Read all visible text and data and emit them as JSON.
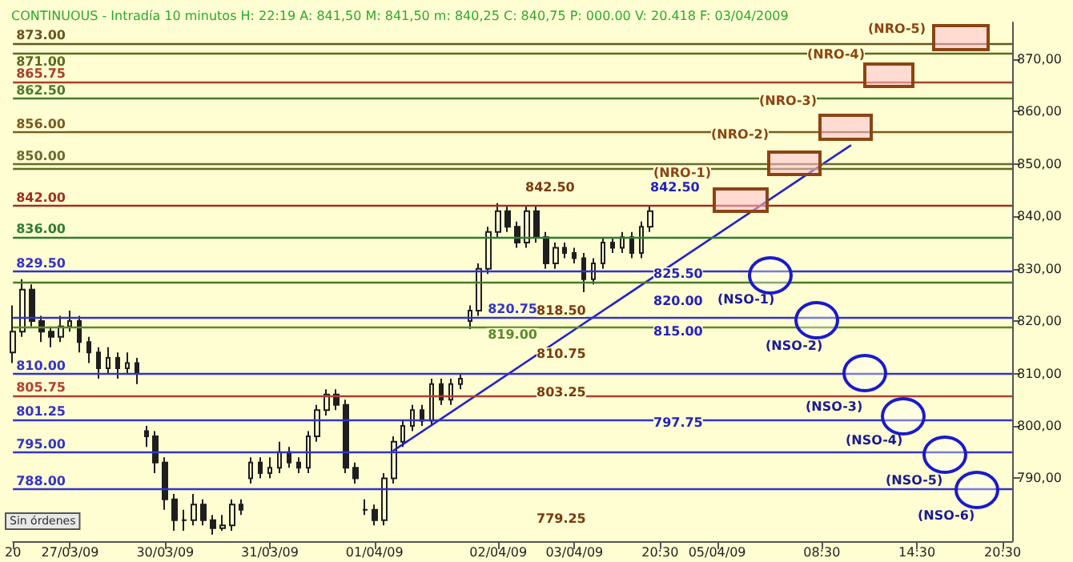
{
  "chart_data": {
    "type": "candlestick",
    "title": "CONTINUOUS - Intradía 10 minutos H: 22:19 A: 841,50 M: 841,50 m: 840,25 C: 840,75 P: 000.00 V: 20.418 F: 03/04/2009",
    "color": "#1e1e1e",
    "categories": [
      "20",
      null,
      null,
      null,
      null,
      null,
      "27/03/09",
      null,
      null,
      null,
      null,
      null,
      null,
      null,
      null,
      null,
      "30/03/09",
      null,
      null,
      null,
      null,
      null,
      null,
      null,
      null,
      null,
      null,
      "31/03/09",
      null,
      null,
      null,
      null,
      null,
      null,
      null,
      null,
      null,
      null,
      "01/04/09",
      null,
      null,
      null,
      null,
      null,
      null,
      null,
      null,
      null,
      null,
      null,
      null,
      "02/04/09",
      null,
      null,
      null,
      null,
      null,
      null,
      null,
      "03/04/09",
      null,
      null,
      null,
      null,
      null,
      null,
      null,
      null,
      "20:30",
      null,
      null,
      null,
      null,
      null,
      "05/04/09",
      null,
      null,
      null,
      null,
      null,
      null,
      null,
      null,
      null,
      null,
      "08:30",
      null,
      null,
      null,
      null,
      null,
      null,
      null,
      null,
      null,
      "14:30",
      null,
      null,
      null,
      null,
      null,
      null,
      null,
      null,
      "20:30",
      null
    ],
    "ohlc": [
      [
        814,
        823,
        812,
        818
      ],
      [
        818,
        828,
        817,
        826
      ],
      [
        826,
        827,
        819,
        820
      ],
      [
        820,
        821,
        816,
        818
      ],
      [
        818,
        819,
        815,
        817
      ],
      [
        817,
        821,
        816,
        819
      ],
      [
        819,
        822,
        818,
        820
      ],
      [
        820,
        821,
        814,
        816
      ],
      [
        816,
        817,
        812,
        814
      ],
      [
        814,
        815,
        809,
        811
      ],
      [
        811,
        815,
        810,
        813
      ],
      [
        813,
        814,
        809,
        811
      ],
      [
        811,
        814,
        810,
        812
      ],
      [
        812,
        813,
        808,
        810
      ],
      [
        799,
        800,
        796,
        798
      ],
      [
        798,
        799,
        791,
        793
      ],
      [
        793,
        794,
        784,
        786
      ],
      [
        786,
        787,
        780,
        782
      ],
      [
        782,
        784,
        780,
        782
      ],
      [
        782,
        787,
        781,
        785
      ],
      [
        785,
        786,
        781,
        782
      ],
      [
        782,
        783,
        779.25,
        780.5
      ],
      [
        780.5,
        783,
        780,
        781
      ],
      [
        781,
        786,
        780,
        785
      ],
      [
        785,
        786,
        783,
        784
      ],
      [
        790,
        794,
        789,
        793
      ],
      [
        793,
        794,
        790,
        791
      ],
      [
        791,
        794,
        790,
        792
      ],
      [
        792,
        797,
        791,
        795
      ],
      [
        795,
        796,
        792,
        793
      ],
      [
        793,
        794,
        791,
        792
      ],
      [
        792,
        799,
        791,
        798
      ],
      [
        798,
        804,
        797,
        803
      ],
      [
        803,
        807,
        802,
        806
      ],
      [
        806,
        807,
        803,
        804
      ],
      [
        804,
        805,
        791,
        792
      ],
      [
        792,
        793,
        789,
        790
      ],
      [
        784,
        786,
        783,
        784
      ],
      [
        784,
        785,
        781,
        782
      ],
      [
        782,
        791,
        781,
        790
      ],
      [
        790,
        798,
        789,
        797
      ],
      [
        797,
        801,
        796,
        800
      ],
      [
        800,
        804,
        799,
        803
      ],
      [
        803,
        804,
        800,
        801
      ],
      [
        801,
        809,
        800,
        808
      ],
      [
        808,
        809,
        804,
        805
      ],
      [
        805,
        809,
        804,
        808
      ],
      [
        808,
        810,
        807,
        809
      ],
      [
        820,
        823,
        818.5,
        822
      ],
      [
        822,
        831,
        821,
        830
      ],
      [
        830,
        838,
        829,
        837
      ],
      [
        837,
        842.5,
        836,
        841
      ],
      [
        841,
        842,
        837,
        838
      ],
      [
        838,
        839,
        834,
        835
      ],
      [
        835,
        842,
        834,
        841
      ],
      [
        841,
        842,
        835,
        836
      ],
      [
        836,
        837,
        830,
        831
      ],
      [
        831,
        835,
        830,
        834
      ],
      [
        834,
        835,
        832,
        833
      ],
      [
        833,
        834,
        831,
        832
      ],
      [
        832,
        833,
        825.5,
        828
      ],
      [
        828,
        832,
        827,
        831
      ],
      [
        831,
        836,
        830,
        835
      ],
      [
        835,
        836,
        833,
        834
      ],
      [
        834,
        837,
        833,
        836
      ],
      [
        836,
        837,
        832,
        833
      ],
      [
        833,
        839,
        832,
        838
      ],
      [
        838,
        842,
        837,
        841
      ],
      null,
      null,
      null,
      null,
      null,
      null,
      null,
      null,
      null,
      null,
      null,
      null,
      null,
      null,
      null,
      null,
      null,
      null,
      null,
      null,
      null,
      null,
      null,
      null,
      null,
      null,
      null,
      null,
      null,
      null,
      null,
      null,
      null,
      null,
      null,
      null,
      null,
      null
    ],
    "series": [
      {
        "type": "line",
        "color": "#2222cc",
        "values": [
          null,
          null,
          null,
          null,
          null,
          null,
          null,
          null,
          null,
          null,
          null,
          null,
          null,
          null,
          null,
          null,
          null,
          null,
          null,
          null,
          null,
          null,
          null,
          null,
          null,
          null,
          null,
          null,
          null,
          null,
          null,
          null,
          null,
          null,
          null,
          null,
          null,
          null,
          null,
          null,
          795.3,
          null,
          null,
          null,
          null,
          null,
          null,
          null,
          null,
          null,
          null,
          null,
          null,
          null,
          null,
          null,
          null,
          null,
          null,
          null,
          null,
          null,
          null,
          null,
          null,
          null,
          null,
          null,
          null,
          null,
          null,
          null,
          null,
          null,
          null,
          null,
          null,
          null,
          null,
          null,
          null,
          null,
          null,
          null,
          null,
          null,
          null,
          null,
          853.5,
          null,
          null,
          null,
          null,
          null,
          null,
          null,
          null,
          null,
          null,
          null,
          null,
          null,
          null,
          null,
          null,
          null
        ]
      }
    ],
    "ylim": [
      778,
      877
    ],
    "yticks": [
      {
        "value": 790,
        "label": "790,00"
      },
      {
        "value": 800,
        "label": "800,00"
      },
      {
        "value": 810,
        "label": "810,00"
      },
      {
        "value": 820,
        "label": "820,00"
      },
      {
        "value": 830,
        "label": "830,00"
      },
      {
        "value": 840,
        "label": "840,00"
      },
      {
        "value": 850,
        "label": "850,00"
      },
      {
        "value": 860,
        "label": "860,00"
      },
      {
        "value": 870,
        "label": "870,00"
      }
    ],
    "ref_lines": [
      {
        "axis": "y",
        "value": 873,
        "label": "873.00",
        "color": "#6b5420"
      },
      {
        "axis": "y",
        "value": 871,
        "label": "871.00",
        "color": "#5a6b1e"
      },
      {
        "axis": "y",
        "value": 865.75,
        "label": "865.75",
        "color": "#a8402a"
      },
      {
        "axis": "y",
        "value": 862.5,
        "label": "862.50",
        "color": "#4a7a2a"
      },
      {
        "axis": "y",
        "value": 856,
        "label": "856.00",
        "color": "#7a5a20"
      },
      {
        "axis": "y",
        "value": 850,
        "label": "850.00",
        "color": "#6a6a30"
      },
      {
        "axis": "y",
        "value": 849.25,
        "label": null,
        "color": "#5a6b1e"
      },
      {
        "axis": "y",
        "value": 842,
        "label": "842.00",
        "color": "#a03020"
      },
      {
        "axis": "y",
        "value": 836,
        "label": "836.00",
        "color": "#2e7d32"
      },
      {
        "axis": "y",
        "value": 829.5,
        "label": "829.50",
        "color": "#3333cc"
      },
      {
        "axis": "y",
        "value": 827.5,
        "label": null,
        "color": "#4a7a2a"
      },
      {
        "axis": "y",
        "value": 820.75,
        "label": "820.75",
        "color": "#3333cc"
      },
      {
        "axis": "y",
        "value": 819,
        "label": "819.00",
        "color": "#5a8a2a"
      },
      {
        "axis": "y",
        "value": 810,
        "label": "810.00",
        "color": "#3333cc"
      },
      {
        "axis": "y",
        "value": 805.75,
        "label": "805.75",
        "color": "#b04030"
      },
      {
        "axis": "y",
        "value": 801.25,
        "label": "801.25",
        "color": "#3333cc"
      },
      {
        "axis": "y",
        "value": 795,
        "label": "795.00",
        "color": "#3333cc"
      },
      {
        "axis": "y",
        "value": 788,
        "label": "788.00",
        "color": "#3333cc"
      }
    ],
    "annotations": [
      "842.50",
      "818.50",
      "810.75",
      "803.25",
      "779.25",
      "842.50",
      "825.50",
      "820.00",
      "815.00",
      "797.75",
      "(NRO-1)",
      "(NRO-2)",
      "(NRO-3)",
      "(NRO-4)",
      "(NRO-5)",
      "(NSO-1)",
      "(NSO-2)",
      "(NSO-3)",
      "(NSO-4)",
      "(NSO-5)",
      "(NSO-6)",
      "Sin órdenes"
    ]
  }
}
